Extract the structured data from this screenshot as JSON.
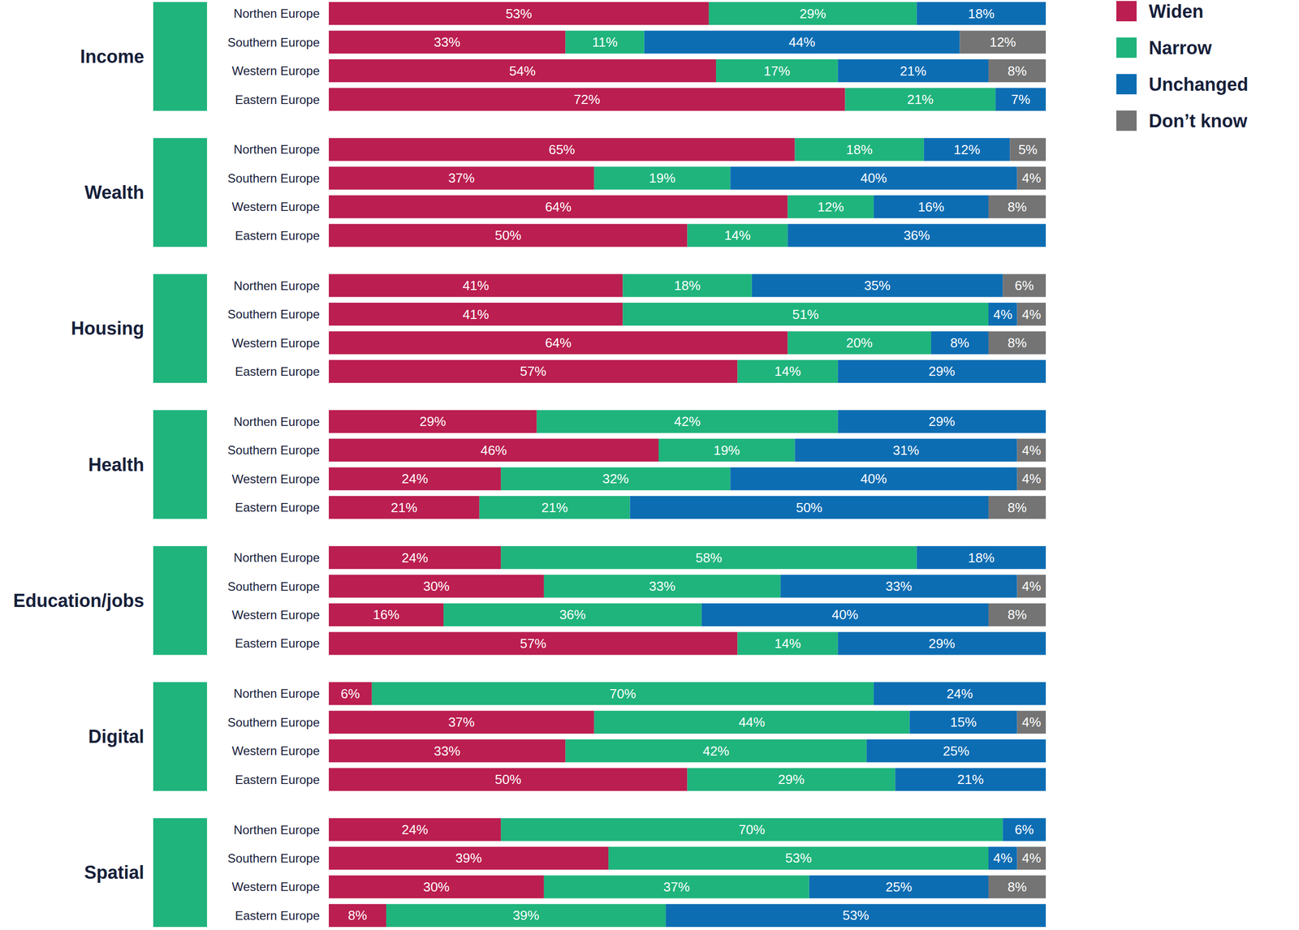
{
  "chart_data": {
    "type": "bar",
    "orientation": "horizontal",
    "stacked": true,
    "data_labels": true,
    "tick_labels": false,
    "legend": "top-right",
    "xlim": [
      0,
      100
    ],
    "groups": [
      "Income",
      "Wealth",
      "Housing",
      "Health",
      "Education/jobs",
      "Digital",
      "Spatial"
    ],
    "categories": [
      "Northen Europe",
      "Southern Europe",
      "Western Europe",
      "Eastern Europe",
      "Northen Europe",
      "Southern Europe",
      "Western Europe",
      "Eastern Europe",
      "Northen Europe",
      "Southern Europe",
      "Western Europe",
      "Eastern Europe",
      "Northen Europe",
      "Southern Europe",
      "Western Europe",
      "Eastern Europe",
      "Northen Europe",
      "Southern Europe",
      "Western Europe",
      "Eastern Europe",
      "Northen Europe",
      "Southern Europe",
      "Western Europe",
      "Eastern Europe",
      "Northen Europe",
      "Southern Europe",
      "Western Europe",
      "Eastern Europe"
    ],
    "series": [
      {
        "name": "Widen",
        "color": "#bb1e50",
        "values": [
          53,
          33,
          54,
          72,
          65,
          37,
          64,
          50,
          41,
          41,
          64,
          57,
          29,
          46,
          24,
          21,
          24,
          30,
          16,
          57,
          6,
          37,
          33,
          50,
          24,
          39,
          30,
          8
        ],
        "value_labels": [
          "53%",
          "33%",
          "54%",
          "72%",
          "65%",
          "37%",
          "64%",
          "50%",
          "41%",
          "41%",
          "64%",
          "57%",
          "29%",
          "46%",
          "24%",
          "21%",
          "24%",
          "30%",
          "16%",
          "57%",
          "6%",
          "37%",
          "33%",
          "50%",
          "24%",
          "39%",
          "30%",
          "8%"
        ]
      },
      {
        "name": "Narrow",
        "color": "#1fb47c",
        "values": [
          29,
          11,
          17,
          21,
          18,
          19,
          12,
          14,
          18,
          51,
          20,
          14,
          42,
          19,
          32,
          21,
          58,
          33,
          36,
          14,
          70,
          44,
          42,
          29,
          70,
          53,
          37,
          39
        ],
        "value_labels": [
          "29%",
          "11%",
          "17%",
          "21%",
          "18%",
          "19%",
          "12%",
          "14%",
          "18%",
          "51%",
          "20%",
          "14%",
          "42%",
          "19%",
          "32%",
          "21%",
          "58%",
          "33%",
          "36%",
          "14%",
          "70%",
          "44%",
          "42%",
          "29%",
          "70%",
          "53%",
          "37%",
          "39%"
        ]
      },
      {
        "name": "Unchanged",
        "color": "#0d6db3",
        "values": [
          18,
          44,
          21,
          7,
          12,
          40,
          16,
          36,
          35,
          4,
          8,
          29,
          29,
          31,
          40,
          50,
          18,
          33,
          40,
          29,
          24,
          15,
          25,
          21,
          6,
          4,
          25,
          53
        ],
        "value_labels": [
          "18%",
          "44%",
          "21%",
          "7%",
          "12%",
          "40%",
          "16%",
          "36%",
          "35%",
          "4%",
          "8%",
          "29%",
          "29%",
          "31%",
          "40%",
          "50%",
          "18%",
          "33%",
          "40%",
          "29%",
          "24%",
          "15%",
          "25%",
          "21%",
          "6%",
          "4%",
          "25%",
          "53%"
        ]
      },
      {
        "name": "Don’t know",
        "color": "#747474",
        "values": [
          null,
          12,
          8,
          null,
          5,
          4,
          8,
          null,
          6,
          4,
          8,
          null,
          null,
          4,
          4,
          8,
          null,
          4,
          8,
          null,
          null,
          4,
          null,
          null,
          null,
          4,
          8,
          null
        ],
        "value_labels": [
          null,
          "12%",
          "8%",
          null,
          "5%",
          "4%",
          "8%",
          null,
          "6%",
          "4%",
          "8%",
          null,
          null,
          "4%",
          "4%",
          "8%",
          null,
          "4%",
          "8%",
          null,
          null,
          "4%",
          null,
          null,
          null,
          "4%",
          "8%",
          null
        ]
      }
    ]
  }
}
